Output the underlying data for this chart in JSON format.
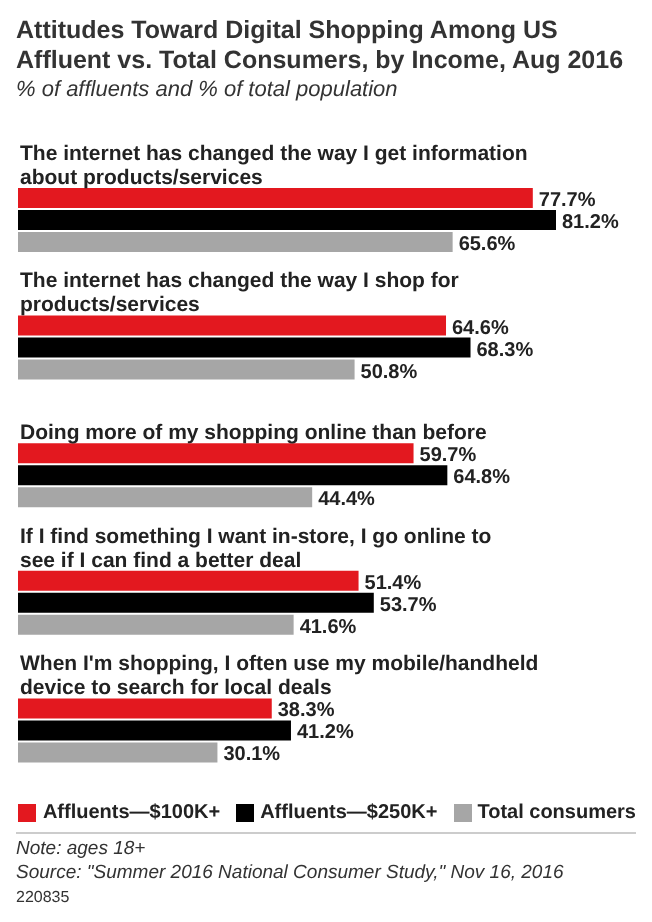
{
  "chart_data": {
    "type": "bar",
    "orientation": "horizontal",
    "title": "Attitudes Toward Digital Shopping Among US Affluent vs. Total Consumers, by Income, Aug 2016",
    "subtitle": "% of affluents and % of total population",
    "categories": [
      "The internet has changed the way I get information about products/services",
      "The internet has changed the way I shop for products/services",
      "Doing more of my shopping online than before",
      "If I find something I want in-store, I go online to see if I can find a better deal",
      "When I'm shopping, I often use my mobile/handheld device to search for local deals"
    ],
    "series": [
      {
        "name": "Affluents—$100K+",
        "color": "#e3181f",
        "values": [
          77.7,
          64.6,
          59.7,
          51.4,
          38.3
        ],
        "value_labels": [
          "77.7%",
          "64.6%",
          "59.7%",
          "51.4%",
          "38.3%"
        ]
      },
      {
        "name": "Affluents—$250K+",
        "color": "#000000",
        "values": [
          81.2,
          68.3,
          64.8,
          53.7,
          41.2
        ],
        "value_labels": [
          "81.2%",
          "68.3%",
          "64.8%",
          "53.7%",
          "41.2%"
        ]
      },
      {
        "name": "Total consumers",
        "color": "#a6a6a6",
        "values": [
          65.6,
          50.8,
          44.4,
          41.6,
          30.1
        ],
        "value_labels": [
          "65.6%",
          "50.8%",
          "44.4%",
          "41.6%",
          "30.1%"
        ]
      }
    ],
    "legend": "bottom",
    "annotations": [
      "Note: ages 18+",
      "Source: \"Summer 2016 National Consumer Study,\" Nov 16, 2016",
      "220835"
    ]
  }
}
